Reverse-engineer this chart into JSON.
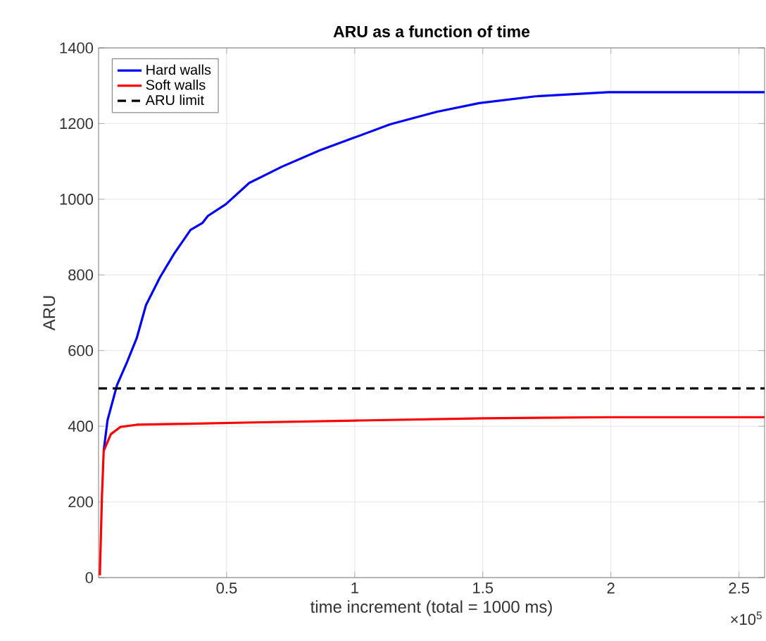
{
  "chart_data": {
    "type": "line",
    "title": "ARU as a function of time",
    "xlabel": "time increment (total = 1000 ms)",
    "ylabel": "ARU",
    "xlim": [
      0,
      2.6
    ],
    "ylim": [
      0,
      1400
    ],
    "xticks": [
      0.5,
      1,
      1.5,
      2,
      2.5
    ],
    "yticks": [
      0,
      200,
      400,
      600,
      800,
      1000,
      1200,
      1400
    ],
    "grid": true,
    "legend": "top left",
    "annotations": [
      "×10$^{5}$"
    ],
    "series": [
      {
        "name": "Hard walls",
        "color": "#0000ff",
        "x": [
          0.02,
          0.035,
          0.072,
          0.112,
          0.149,
          0.185,
          0.24,
          0.295,
          0.359,
          0.405,
          0.427,
          0.497,
          0.588,
          0.716,
          0.863,
          0.991,
          1.138,
          1.32,
          1.486,
          1.705,
          1.99,
          2.6
        ],
        "values": [
          335,
          416,
          509,
          571,
          633,
          720,
          794,
          856,
          919,
          937,
          956,
          987,
          1043,
          1086,
          1129,
          1161,
          1198,
          1231,
          1254,
          1272,
          1283,
          1283
        ]
      },
      {
        "name": "Soft walls",
        "color": "#ff0000",
        "x": [
          0.005,
          0.013,
          0.02,
          0.048,
          0.085,
          0.149,
          0.3,
          0.6,
          1.0,
          1.5,
          2.0,
          2.6
        ],
        "values": [
          6,
          211,
          335,
          379,
          398,
          404,
          406,
          410,
          415,
          421,
          424,
          424
        ]
      }
    ],
    "ref_lines": [
      {
        "axis": "y",
        "value": 500,
        "label": "ARU limit",
        "color": "#000000",
        "line_style": "dashed"
      }
    ]
  }
}
